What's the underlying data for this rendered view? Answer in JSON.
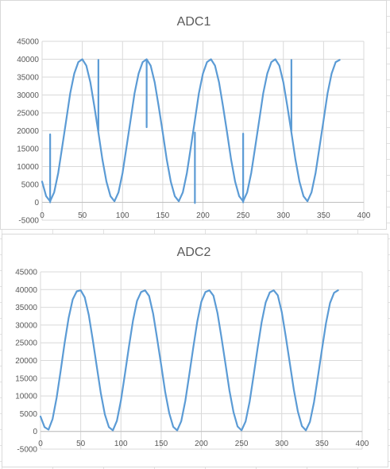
{
  "chart_data": [
    {
      "type": "line",
      "title": "ADC1",
      "xlim": [
        0,
        400
      ],
      "ylim": [
        -5000,
        45000
      ],
      "x_ticks": [
        0,
        50,
        100,
        150,
        200,
        250,
        300,
        350,
        400
      ],
      "y_ticks": [
        -5000,
        0,
        5000,
        10000,
        15000,
        20000,
        25000,
        30000,
        35000,
        40000,
        45000
      ],
      "x_tick_labels": [
        "0",
        "50",
        "100",
        "150",
        "200",
        "250",
        "300",
        "350",
        "400"
      ],
      "y_tick_labels": [
        "-5000",
        "0",
        "5000",
        "10000",
        "15000",
        "20000",
        "25000",
        "30000",
        "35000",
        "40000",
        "45000"
      ],
      "grid": true,
      "legend": "none",
      "color": "#5b9bd5",
      "series": [
        {
          "x": [
            0,
            5,
            10,
            15,
            20,
            25,
            30,
            35,
            40,
            45,
            50,
            55,
            60,
            65,
            70,
            75,
            80,
            85,
            90,
            95,
            100,
            105,
            110,
            115,
            120,
            125,
            130,
            135,
            140,
            145,
            150,
            155,
            160,
            165,
            170,
            175,
            180,
            185,
            190,
            195,
            200,
            205,
            210,
            215,
            220,
            225,
            230,
            235,
            240,
            245,
            250,
            255,
            260,
            265,
            270,
            275,
            280,
            285,
            290,
            295,
            300,
            305,
            310,
            315,
            320,
            325,
            330,
            335,
            340,
            345,
            350,
            355,
            360,
            365,
            370
          ],
          "values": [
            5800,
            1700,
            300,
            2800,
            8200,
            15500,
            23000,
            30500,
            36000,
            39200,
            40000,
            38200,
            33500,
            26800,
            19500,
            12000,
            5800,
            1700,
            300,
            2800,
            8200,
            15500,
            23000,
            30500,
            36000,
            39200,
            40000,
            38200,
            33500,
            26800,
            19500,
            12000,
            5800,
            1700,
            300,
            2800,
            8200,
            15500,
            23000,
            30500,
            36000,
            39200,
            40000,
            38200,
            33500,
            26800,
            19500,
            12000,
            5800,
            1700,
            300,
            2800,
            8200,
            15500,
            23000,
            30500,
            36000,
            39200,
            40000,
            38200,
            33500,
            26800,
            19500,
            12000,
            5800,
            1700,
            300,
            2800,
            8200,
            15500,
            23000,
            30500,
            36000,
            39200,
            39800
          ],
          "spikes": [
            {
              "x": 10,
              "from": 0,
              "to": 19000
            },
            {
              "x": 70,
              "from": 20000,
              "to": 39800
            },
            {
              "x": 130,
              "from": 21000,
              "to": 39800
            },
            {
              "x": 190,
              "from": -200,
              "to": 19500
            },
            {
              "x": 250,
              "from": 0,
              "to": 19200
            },
            {
              "x": 310,
              "from": 20000,
              "to": 39800
            }
          ]
        }
      ]
    },
    {
      "type": "line",
      "title": "ADC2",
      "xlim": [
        0,
        400
      ],
      "ylim": [
        -5000,
        45000
      ],
      "x_ticks": [
        0,
        50,
        100,
        150,
        200,
        250,
        300,
        350,
        400
      ],
      "y_ticks": [
        -5000,
        0,
        5000,
        10000,
        15000,
        20000,
        25000,
        30000,
        35000,
        40000,
        45000
      ],
      "x_tick_labels": [
        "0",
        "50",
        "100",
        "150",
        "200",
        "250",
        "300",
        "350",
        "400"
      ],
      "y_tick_labels": [
        "-5000",
        "0",
        "5000",
        "10000",
        "15000",
        "20000",
        "25000",
        "30000",
        "35000",
        "40000",
        "45000"
      ],
      "grid": true,
      "legend": "none",
      "color": "#5b9bd5",
      "series": [
        {
          "x": [
            0,
            5,
            10,
            15,
            20,
            25,
            30,
            35,
            40,
            45,
            50,
            55,
            60,
            65,
            70,
            75,
            80,
            85,
            90,
            95,
            100,
            105,
            110,
            115,
            120,
            125,
            130,
            135,
            140,
            145,
            150,
            155,
            160,
            165,
            170,
            175,
            180,
            185,
            190,
            195,
            200,
            205,
            210,
            215,
            220,
            225,
            230,
            235,
            240,
            245,
            250,
            255,
            260,
            265,
            270,
            275,
            280,
            285,
            290,
            295,
            300,
            305,
            310,
            315,
            320,
            325,
            330,
            335,
            340,
            345,
            350,
            355,
            360,
            365,
            370
          ],
          "values": [
            4200,
            1200,
            500,
            3500,
            9500,
            17000,
            25000,
            32000,
            37200,
            39500,
            39800,
            37800,
            32800,
            25800,
            18200,
            10800,
            4800,
            1200,
            300,
            3000,
            8800,
            16200,
            24000,
            31200,
            36800,
            39300,
            39800,
            38200,
            33200,
            26200,
            18800,
            11200,
            5200,
            1300,
            300,
            2900,
            8600,
            16000,
            23800,
            31000,
            36600,
            39300,
            39800,
            38300,
            33400,
            26500,
            19000,
            11500,
            5400,
            1400,
            300,
            2800,
            8400,
            15800,
            23600,
            30800,
            36400,
            39200,
            39800,
            38400,
            33600,
            26700,
            19200,
            11800,
            5600,
            1500,
            300,
            2700,
            8200,
            15500,
            23200,
            30500,
            36200,
            39100,
            39800
          ]
        }
      ]
    }
  ]
}
